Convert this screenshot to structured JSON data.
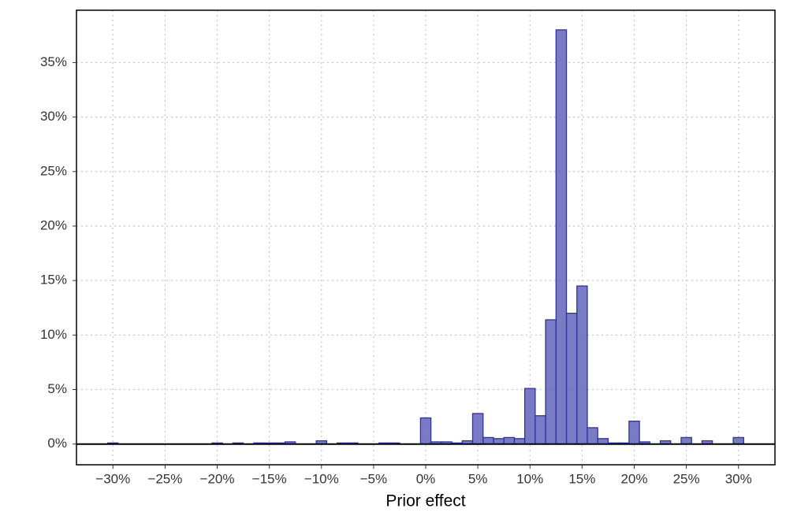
{
  "chart_data": {
    "type": "histogram",
    "x_label": "Prior effect",
    "bins": [
      -30.5,
      -29.5,
      -28.5,
      -27.5,
      -26.5,
      -25.5,
      -24.5,
      -23.5,
      -22.5,
      -21.5,
      -20.5,
      -19.5,
      -18.5,
      -17.5,
      -16.5,
      -15.5,
      -14.5,
      -13.5,
      -12.5,
      -11.5,
      -10.5,
      -9.5,
      -8.5,
      -7.5,
      -6.5,
      -5.5,
      -4.5,
      -3.5,
      -2.5,
      -1.5,
      -0.5,
      0.5,
      1.5,
      2.5,
      3.5,
      4.5,
      5.5,
      6.5,
      7.5,
      8.5,
      9.5,
      10.5,
      11.5,
      12.5,
      13.5,
      14.5,
      15.5,
      16.5,
      17.5,
      18.5,
      19.5,
      20.5,
      21.5,
      22.5,
      23.5,
      24.5,
      25.5,
      26.5,
      27.5,
      28.5,
      29.5,
      30.5
    ],
    "values": [
      0.1,
      0,
      0,
      0,
      0,
      0,
      0,
      0,
      0,
      0,
      0.1,
      0,
      0.1,
      0,
      0.1,
      0.1,
      0.1,
      0.2,
      0,
      0,
      0.3,
      0,
      0.1,
      0.1,
      0,
      0,
      0.1,
      0.1,
      0,
      0,
      2.4,
      0.2,
      0.2,
      0.1,
      0.3,
      2.8,
      0.6,
      0.5,
      0.6,
      0.5,
      5.1,
      2.6,
      11.4,
      38.0,
      12.0,
      14.5,
      1.5,
      0.5,
      0.1,
      0.1,
      2.1,
      0.2,
      0,
      0.3,
      0,
      0.6,
      0,
      0.3,
      0,
      0,
      0.6
    ],
    "fill": "#6a6dbf",
    "edge_color": "#2e32a0",
    "xlim": [
      -33.5,
      33.5
    ],
    "xticks": [
      {
        "value": -30,
        "label": "−30%"
      },
      {
        "value": -25,
        "label": "−25%"
      },
      {
        "value": -20,
        "label": "−20%"
      },
      {
        "value": -15,
        "label": "−15%"
      },
      {
        "value": -10,
        "label": "−10%"
      },
      {
        "value": -5,
        "label": "−5%"
      },
      {
        "value": 0,
        "label": "0%"
      },
      {
        "value": 5,
        "label": "5%"
      },
      {
        "value": 10,
        "label": "10%"
      },
      {
        "value": 15,
        "label": "15%"
      },
      {
        "value": 20,
        "label": "20%"
      },
      {
        "value": 25,
        "label": "25%"
      },
      {
        "value": 30,
        "label": "30%"
      }
    ],
    "ylim": [
      -1.9,
      39.8
    ],
    "yticks": [
      {
        "value": 0,
        "label": "0%"
      },
      {
        "value": 5,
        "label": "5%"
      },
      {
        "value": 10,
        "label": "10%"
      },
      {
        "value": 15,
        "label": "15%"
      },
      {
        "value": 20,
        "label": "20%"
      },
      {
        "value": 25,
        "label": "25%"
      },
      {
        "value": 30,
        "label": "30%"
      },
      {
        "value": 35,
        "label": "35%"
      }
    ],
    "grid": true
  }
}
